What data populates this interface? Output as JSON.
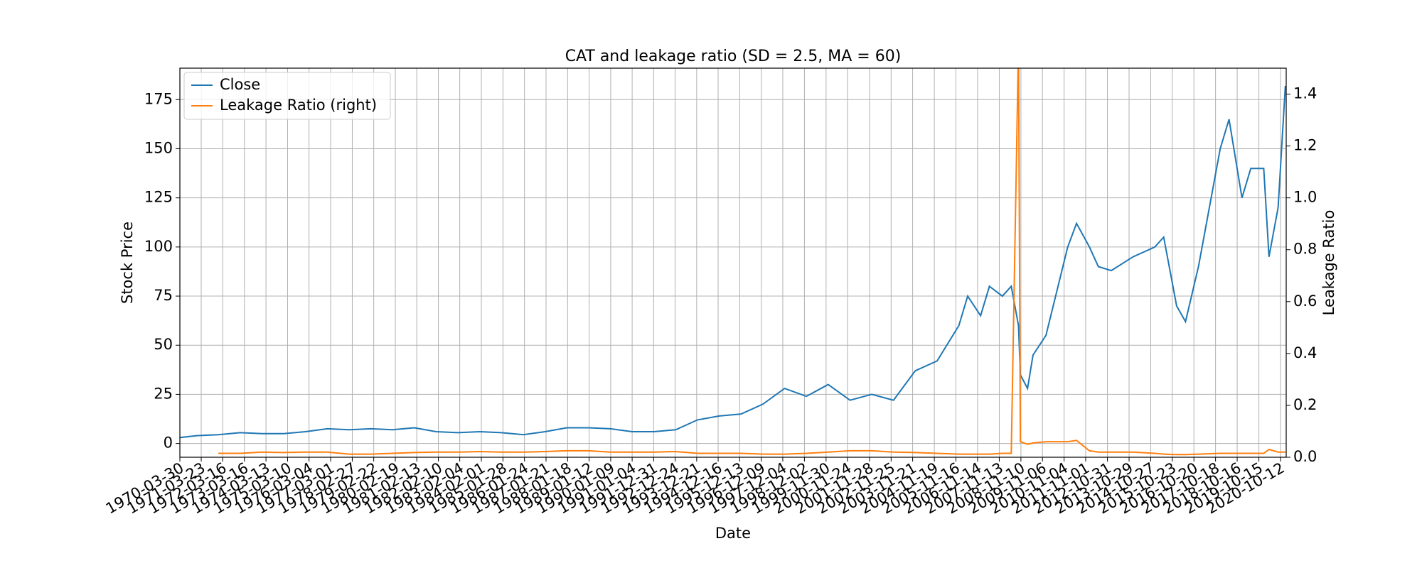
{
  "chart_data": {
    "type": "line",
    "title": "CAT and leakage ratio (SD = 2.5, MA = 60)",
    "x_label": "Date",
    "y_label": "Stock Price",
    "y2_label": "Leakage Ratio",
    "x": [
      "1970-03-30",
      "1971-01-04",
      "1972-01-04",
      "1973-01-04",
      "1974-01-04",
      "1975-01-04",
      "1976-01-04",
      "1977-01-04",
      "1978-01-04",
      "1979-01-04",
      "1980-01-04",
      "1981-01-04",
      "1982-01-04",
      "1983-01-04",
      "1984-01-04",
      "1985-01-04",
      "1986-01-04",
      "1987-01-04",
      "1988-01-04",
      "1989-01-04",
      "1990-01-04",
      "1991-01-04",
      "1992-01-04",
      "1993-01-04",
      "1994-01-04",
      "1995-01-04",
      "1996-01-04",
      "1997-01-04",
      "1998-01-04",
      "1999-01-04",
      "2000-01-04",
      "2001-01-04",
      "2002-01-04",
      "2003-01-04",
      "2004-01-04",
      "2005-01-04",
      "2006-01-04",
      "2006-06-01",
      "2007-01-04",
      "2007-06-01",
      "2008-01-04",
      "2008-06-01",
      "2008-10-01",
      "2008-11-01",
      "2009-03-01",
      "2009-06-01",
      "2010-01-04",
      "2011-01-04",
      "2011-06-01",
      "2012-01-04",
      "2012-06-01",
      "2013-01-04",
      "2014-01-04",
      "2015-01-04",
      "2015-06-01",
      "2016-01-04",
      "2016-06-01",
      "2017-01-04",
      "2018-01-04",
      "2018-06-01",
      "2019-01-04",
      "2019-06-01",
      "2020-01-04",
      "2020-04-01",
      "2020-09-01",
      "2021-01-01"
    ],
    "xlim": [
      "1970-03-30",
      "2021-01-15"
    ],
    "xticks": [
      "1970-03-30",
      "1971-03-23",
      "1972-03-16",
      "1973-03-16",
      "1974-03-13",
      "1975-03-10",
      "1976-03-04",
      "1977-03-01",
      "1978-02-27",
      "1979-02-22",
      "1980-02-19",
      "1981-02-13",
      "1982-02-10",
      "1983-02-04",
      "1984-02-01",
      "1985-01-28",
      "1986-01-24",
      "1987-01-21",
      "1988-01-18",
      "1989-01-12",
      "1990-01-09",
      "1991-01-04",
      "1991-12-31",
      "1992-12-24",
      "1993-12-21",
      "1994-12-16",
      "1995-12-13",
      "1996-12-09",
      "1997-12-04",
      "1998-12-02",
      "1999-11-30",
      "2000-11-24",
      "2001-11-28",
      "2002-11-25",
      "2003-11-21",
      "2004-11-19",
      "2005-11-16",
      "2006-11-14",
      "2007-11-13",
      "2008-11-10",
      "2009-11-06",
      "2010-11-04",
      "2011-11-01",
      "2012-10-31",
      "2013-10-29",
      "2014-10-27",
      "2015-10-23",
      "2016-10-20",
      "2017-10-18",
      "2018-10-16",
      "2019-10-15",
      "2020-10-12"
    ],
    "ylim": [
      -7,
      191
    ],
    "yticks": [
      0,
      25,
      50,
      75,
      100,
      125,
      150,
      175
    ],
    "y2lim": [
      0,
      1.5
    ],
    "y2ticks": [
      {
        "value": 0,
        "label": "0.0"
      },
      0.2,
      0.4,
      0.6,
      0.8,
      {
        "value": 1,
        "label": "1.0"
      },
      1.2,
      1.4
    ],
    "grid": true,
    "legend": "upper left",
    "series": [
      {
        "name": "Close",
        "color": "#1f77b4",
        "values": [
          3,
          4,
          4.5,
          5.5,
          5,
          5,
          6,
          7.5,
          7,
          7.5,
          7,
          8,
          6,
          5.5,
          6,
          5.5,
          4.5,
          6,
          8,
          8,
          7.5,
          6,
          6,
          7,
          12,
          14,
          15,
          20,
          28,
          24,
          30,
          22,
          25,
          22,
          37,
          42,
          60,
          75,
          65,
          80,
          75,
          80,
          60,
          35,
          28,
          45,
          55,
          100,
          112,
          100,
          90,
          88,
          95,
          100,
          105,
          70,
          62,
          90,
          150,
          165,
          125,
          140,
          140,
          95,
          120,
          182
        ]
      },
      {
        "name": "Leakage Ratio (right)",
        "color": "#ff7f0e",
        "axis": "y2",
        "values": [
          null,
          null,
          0.015,
          0.015,
          0.02,
          0.018,
          0.02,
          0.02,
          0.012,
          0.012,
          0.015,
          0.018,
          0.02,
          0.02,
          0.022,
          0.02,
          0.02,
          0.022,
          0.025,
          0.025,
          0.02,
          0.02,
          0.02,
          0.022,
          0.015,
          0.015,
          0.015,
          0.012,
          0.012,
          0.015,
          0.02,
          0.025,
          0.025,
          0.02,
          0.018,
          0.015,
          0.012,
          0.012,
          0.012,
          0.012,
          0.015,
          0.015,
          1.6,
          0.06,
          0.05,
          0.055,
          0.06,
          0.06,
          0.065,
          0.025,
          0.02,
          0.02,
          0.02,
          0.015,
          0.012,
          0.01,
          0.01,
          0.012,
          0.015,
          0.015,
          0.015,
          0.015,
          0.015,
          0.03,
          0.02,
          0.02
        ]
      }
    ]
  }
}
